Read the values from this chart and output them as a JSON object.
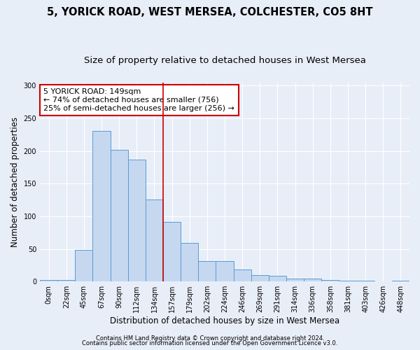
{
  "title": "5, YORICK ROAD, WEST MERSEA, COLCHESTER, CO5 8HT",
  "subtitle": "Size of property relative to detached houses in West Mersea",
  "xlabel": "Distribution of detached houses by size in West Mersea",
  "ylabel": "Number of detached properties",
  "bar_labels": [
    "0sqm",
    "22sqm",
    "45sqm",
    "67sqm",
    "90sqm",
    "112sqm",
    "134sqm",
    "157sqm",
    "179sqm",
    "202sqm",
    "224sqm",
    "246sqm",
    "269sqm",
    "291sqm",
    "314sqm",
    "336sqm",
    "358sqm",
    "381sqm",
    "403sqm",
    "426sqm",
    "448sqm"
  ],
  "bar_values": [
    2,
    2,
    49,
    231,
    202,
    187,
    126,
    91,
    59,
    31,
    31,
    18,
    10,
    9,
    5,
    4,
    2,
    1,
    1,
    0,
    1
  ],
  "bar_color": "#c5d8f0",
  "bar_edge_color": "#5b9bd5",
  "reference_line_index": 6,
  "annotation_text": "5 YORICK ROAD: 149sqm\n← 74% of detached houses are smaller (756)\n25% of semi-detached houses are larger (256) →",
  "annotation_box_color": "#ffffff",
  "annotation_border_color": "#cc0000",
  "ylim": [
    0,
    305
  ],
  "yticks": [
    0,
    50,
    100,
    150,
    200,
    250,
    300
  ],
  "footer_line1": "Contains HM Land Registry data © Crown copyright and database right 2024.",
  "footer_line2": "Contains public sector information licensed under the Open Government Licence v3.0.",
  "bg_color": "#e8eef8",
  "plot_bg_color": "#e8eef8",
  "title_fontsize": 10.5,
  "subtitle_fontsize": 9.5,
  "tick_fontsize": 7,
  "ylabel_fontsize": 8.5,
  "xlabel_fontsize": 8.5,
  "annotation_fontsize": 8,
  "footer_fontsize": 6
}
